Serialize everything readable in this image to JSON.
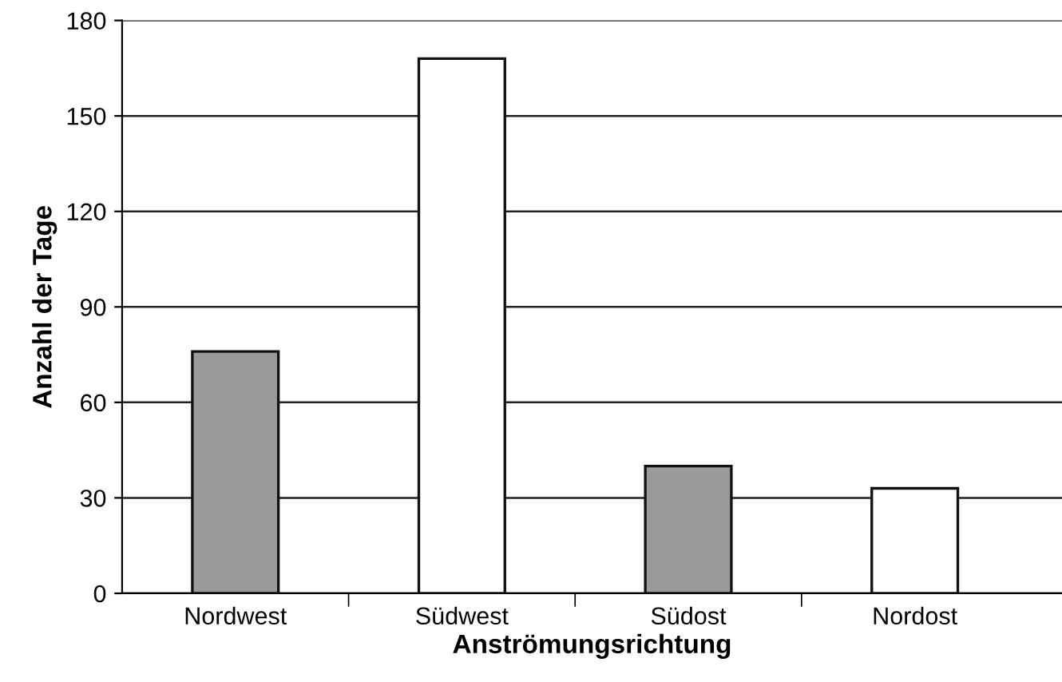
{
  "chart_data": {
    "type": "bar",
    "xlabel": "Anströmungsrichtung",
    "ylabel": "Anzahl der Tage",
    "categories": [
      "Nordwest",
      "Südwest",
      "Südost",
      "Nordost"
    ],
    "values": [
      76,
      168,
      40,
      33
    ],
    "colors": [
      "#9a9a9a",
      "#ffffff",
      "#9a9a9a",
      "#ffffff"
    ],
    "ylim": [
      0,
      180
    ],
    "yticks": [
      0,
      30,
      60,
      90,
      120,
      150,
      180
    ],
    "grid": "y"
  }
}
